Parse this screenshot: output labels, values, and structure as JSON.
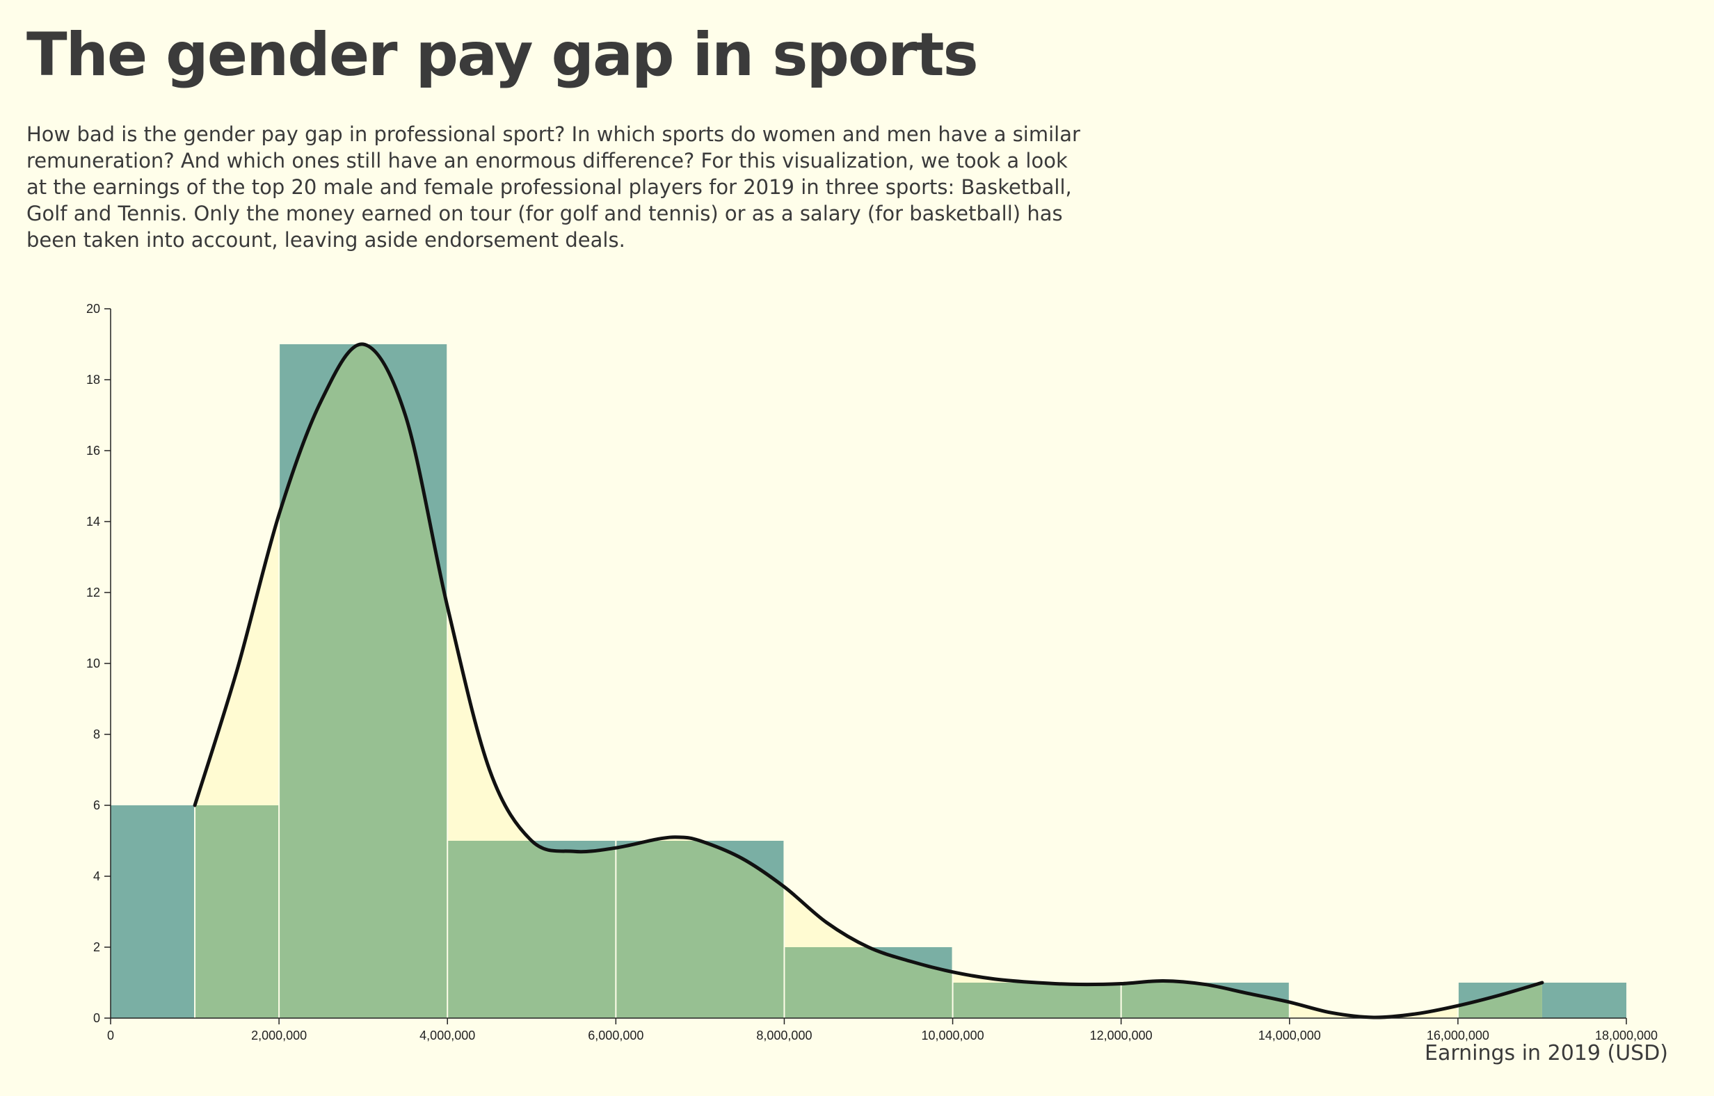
{
  "page": {
    "title": "The gender pay gap in sports",
    "intro": "How bad is the gender pay gap in professional sport? In which sports do women and men have a similar remuneration? And which ones still have an enormous difference? For this visualization, we took a look at the earnings of the top 20 male and female professional players for 2019 in three sports: Basketball, Golf and Tennis. Only the money earned on tour (for golf and tennis) or as a salary (for basketball) has been taken into account, leaving aside endorsement deals."
  },
  "chart_data": {
    "type": "bar",
    "title": "",
    "xlabel": "Earnings in 2019 (USD)",
    "ylabel": "",
    "xlim": [
      0,
      18000000
    ],
    "ylim": [
      0,
      20
    ],
    "x_ticks": [
      0,
      2000000,
      4000000,
      6000000,
      8000000,
      10000000,
      12000000,
      14000000,
      16000000,
      18000000
    ],
    "y_ticks": [
      0,
      2,
      4,
      6,
      8,
      10,
      12,
      14,
      16,
      18,
      20
    ],
    "grid": false,
    "histogram_bins": [
      {
        "x0": 0,
        "x1": 2000000,
        "count": 6
      },
      {
        "x0": 2000000,
        "x1": 4000000,
        "count": 19
      },
      {
        "x0": 4000000,
        "x1": 6000000,
        "count": 5
      },
      {
        "x0": 6000000,
        "x1": 8000000,
        "count": 5
      },
      {
        "x0": 8000000,
        "x1": 10000000,
        "count": 2
      },
      {
        "x0": 10000000,
        "x1": 12000000,
        "count": 1
      },
      {
        "x0": 12000000,
        "x1": 14000000,
        "count": 1
      },
      {
        "x0": 14000000,
        "x1": 16000000,
        "count": 0
      },
      {
        "x0": 16000000,
        "x1": 18000000,
        "count": 1
      }
    ],
    "density_curve": {
      "x": [
        1000000,
        1500000,
        2000000,
        2500000,
        3000000,
        3500000,
        4000000,
        4500000,
        5000000,
        5500000,
        6000000,
        6500000,
        6750000,
        7000000,
        7500000,
        8000000,
        8500000,
        9000000,
        9500000,
        10000000,
        10500000,
        11000000,
        11500000,
        12000000,
        12500000,
        13000000,
        13500000,
        14000000,
        14500000,
        15000000,
        15500000,
        16000000,
        16500000,
        17000000
      ],
      "y": [
        6,
        9.8,
        14.2,
        17.4,
        19,
        17,
        11.6,
        7,
        5,
        4.7,
        4.8,
        5.05,
        5.1,
        5.0,
        4.5,
        3.7,
        2.7,
        2.0,
        1.6,
        1.3,
        1.1,
        1.0,
        0.95,
        0.97,
        1.05,
        0.95,
        0.7,
        0.45,
        0.15,
        0.02,
        0.12,
        0.35,
        0.65,
        1.0
      ]
    },
    "colors": {
      "histogram": "#7aafa4",
      "overlap": "#97c092",
      "density_fill": "#fffbd2",
      "density_line": "#111111",
      "divider": "#fffeea",
      "axis": "#222222",
      "background": "#fffeea"
    }
  }
}
